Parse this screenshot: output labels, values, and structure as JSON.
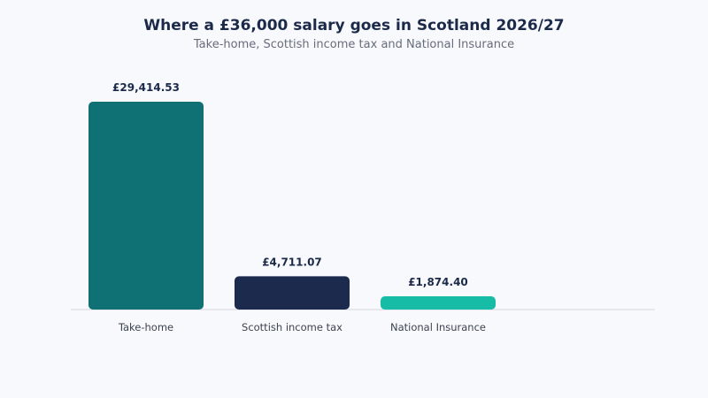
{
  "chart_data": {
    "type": "bar",
    "title": "Where a £36,000 salary goes in Scotland 2026/27",
    "subtitle": "Take-home, Scottish income tax and National Insurance",
    "categories": [
      "Take-home",
      "Scottish income tax",
      "National Insurance"
    ],
    "values": [
      29414.53,
      4711.07,
      1874.4
    ],
    "value_labels": [
      "£29,414.53",
      "£4,711.07",
      "£1,874.40"
    ],
    "colors": [
      "#0f7173",
      "#1c2a4e",
      "#16bca6"
    ],
    "ylim": [
      0,
      29414.53
    ],
    "grid": false,
    "legend": "none"
  }
}
